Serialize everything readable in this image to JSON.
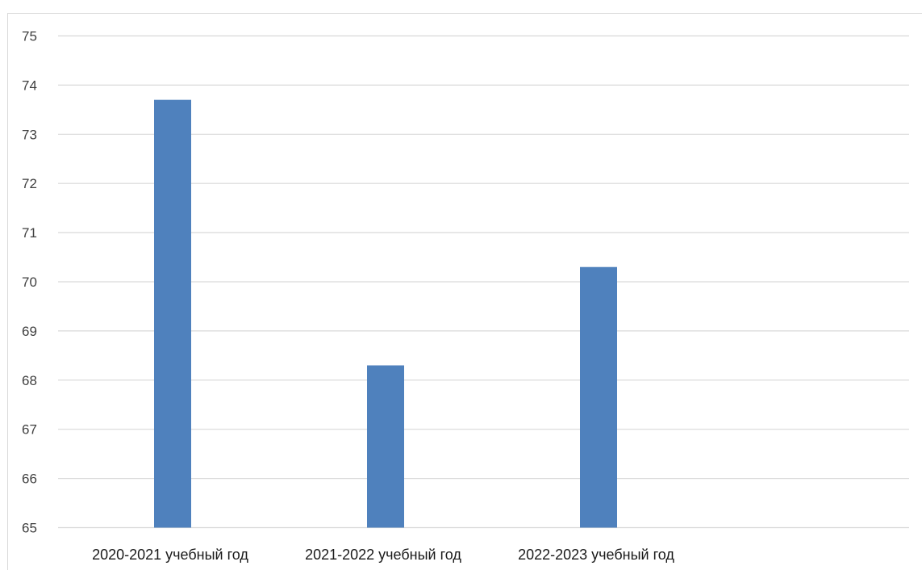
{
  "chart_data": {
    "type": "bar",
    "categories": [
      "2020-2021 учебный год",
      "2021-2022 учебный год",
      "2022-2023 учебный год"
    ],
    "values": [
      73.7,
      68.3,
      70.3
    ],
    "title": "",
    "xlabel": "",
    "ylabel": "",
    "ylim": [
      65,
      75
    ],
    "yticks": [
      65,
      66,
      67,
      68,
      69,
      70,
      71,
      72,
      73,
      74,
      75
    ],
    "grid": true,
    "legend": "none",
    "bar_color": "#4f81bd",
    "grid_color": "#d9d9d9"
  }
}
